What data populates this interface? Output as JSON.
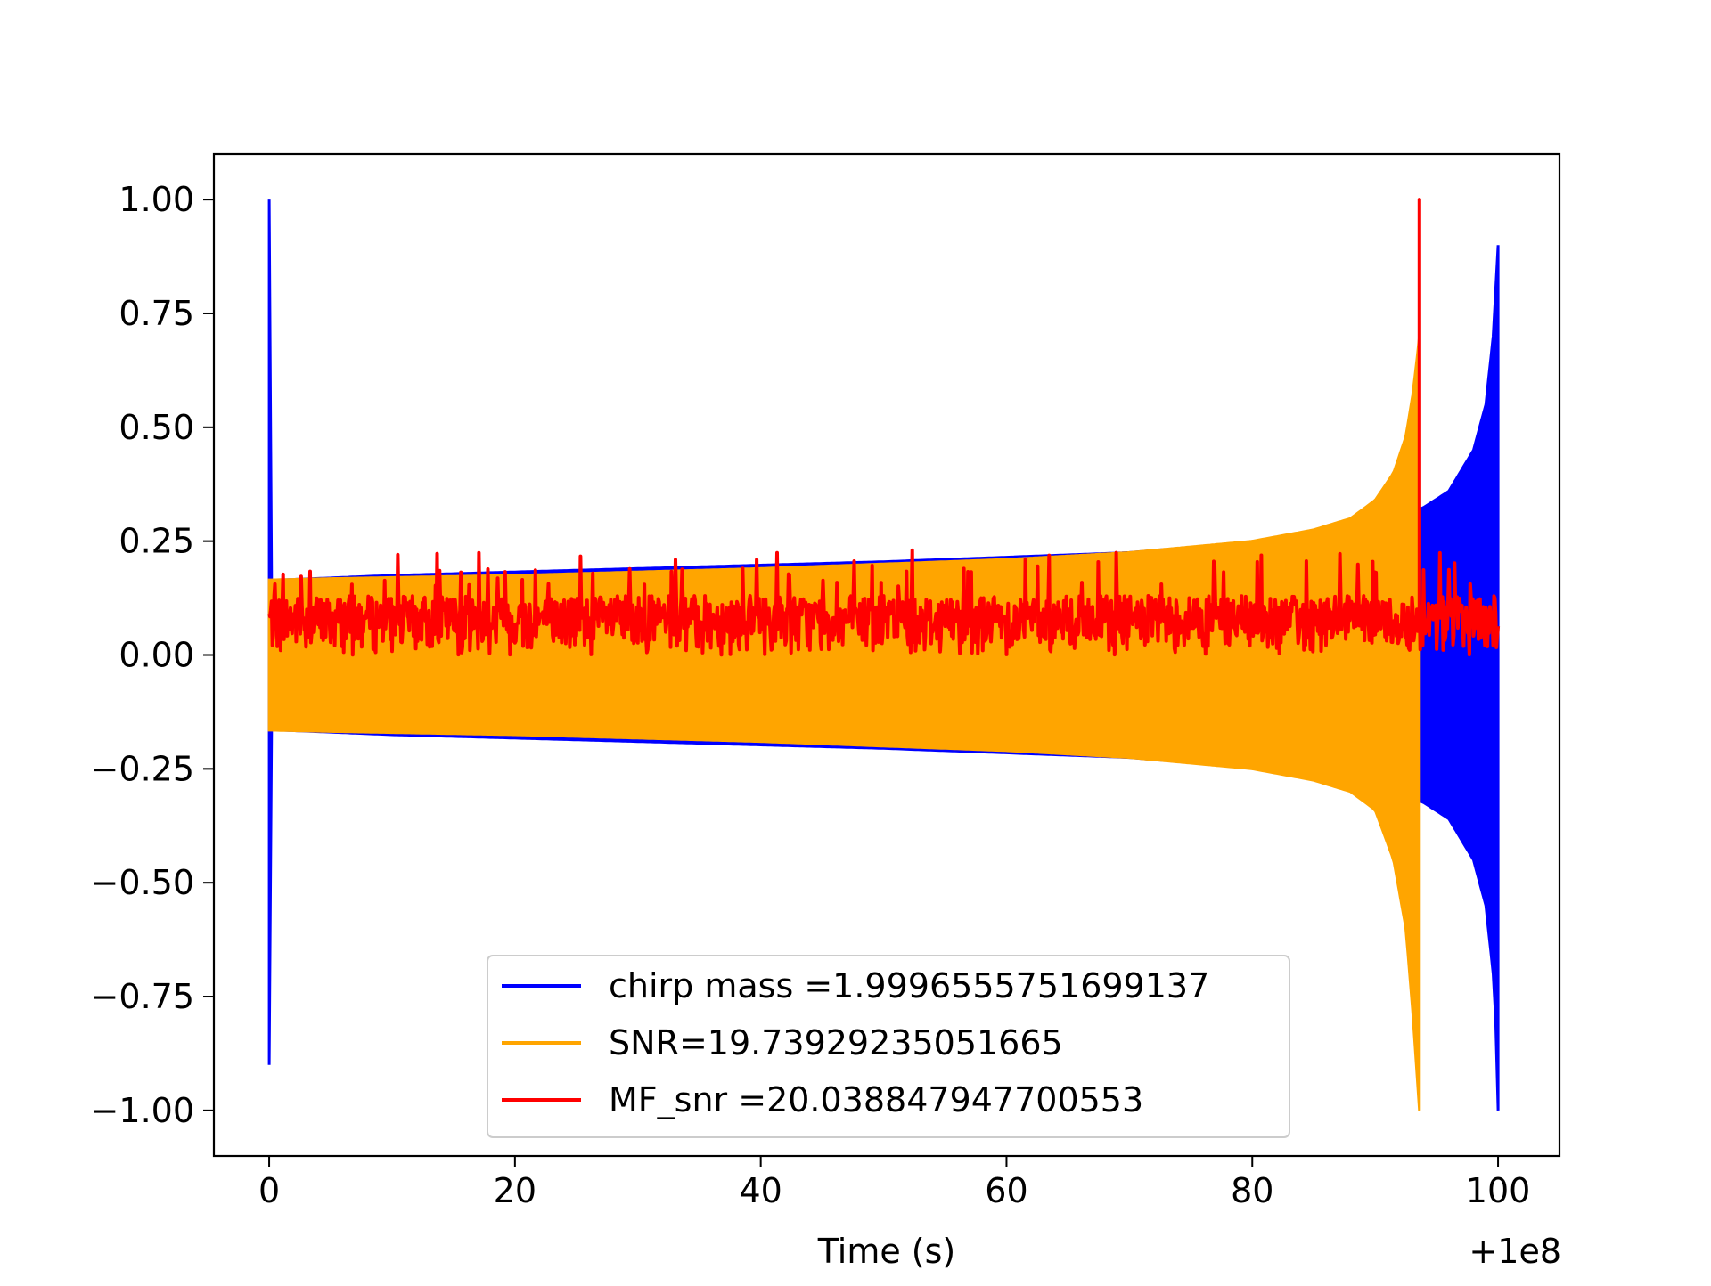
{
  "chart_data": {
    "type": "line",
    "title": "",
    "xlabel": "Time (s)",
    "ylabel": "",
    "x_offset_label": "+1e8",
    "xlim": [
      -4.5,
      105
    ],
    "ylim": [
      -1.1,
      1.1
    ],
    "xticks": [
      0,
      20,
      40,
      60,
      80,
      100
    ],
    "xtick_labels": [
      "0",
      "20",
      "40",
      "60",
      "80",
      "100"
    ],
    "yticks": [
      1.0,
      0.75,
      0.5,
      0.25,
      0.0,
      -0.25,
      -0.5,
      -0.75,
      -1.0
    ],
    "ytick_labels": [
      "1.00",
      "0.75",
      "0.50",
      "0.25",
      "0.00",
      "−0.25",
      "−0.50",
      "−0.75",
      "−1.00"
    ],
    "grid": false,
    "legend_position": "lower-center",
    "series": [
      {
        "name": "chirp mass =1.9996555751699137",
        "color": "#0000ff",
        "envelope": {
          "x": [
            0,
            0.02,
            0.05,
            0.2,
            1,
            10,
            30,
            50,
            70,
            85,
            90,
            93.6,
            94,
            96,
            98,
            99,
            99.6,
            99.9,
            100
          ],
          "upper": [
            1.0,
            0.5,
            0.17,
            0.16,
            0.165,
            0.175,
            0.19,
            0.205,
            0.225,
            0.26,
            0.29,
            0.32,
            0.325,
            0.36,
            0.45,
            0.55,
            0.7,
            0.85,
            0.9
          ],
          "lower": [
            -0.9,
            -0.5,
            -0.17,
            -0.16,
            -0.165,
            -0.175,
            -0.19,
            -0.205,
            -0.225,
            -0.26,
            -0.29,
            -0.32,
            -0.325,
            -0.36,
            -0.45,
            -0.55,
            -0.7,
            -0.85,
            -1.0
          ]
        }
      },
      {
        "name": "SNR=19.73929235051665",
        "color": "#ffa500",
        "envelope": {
          "x": [
            0,
            5,
            20,
            40,
            60,
            70,
            80,
            85,
            88,
            90,
            91.5,
            92.5,
            93.1,
            93.4,
            93.6
          ],
          "upper": [
            0.165,
            0.168,
            0.175,
            0.19,
            0.21,
            0.225,
            0.25,
            0.275,
            0.3,
            0.34,
            0.4,
            0.48,
            0.58,
            0.65,
            0.7
          ],
          "lower": [
            -0.165,
            -0.168,
            -0.175,
            -0.19,
            -0.21,
            -0.225,
            -0.25,
            -0.275,
            -0.3,
            -0.34,
            -0.45,
            -0.6,
            -0.8,
            -0.92,
            -1.0
          ]
        }
      },
      {
        "name": "MF_snr =20.038847947700553",
        "color": "#ff0000",
        "noise_baseline": 0.0,
        "noise_level": 0.13,
        "spike": {
          "x": 93.6,
          "y": 1.0
        },
        "x_range": [
          0,
          100
        ]
      }
    ]
  }
}
